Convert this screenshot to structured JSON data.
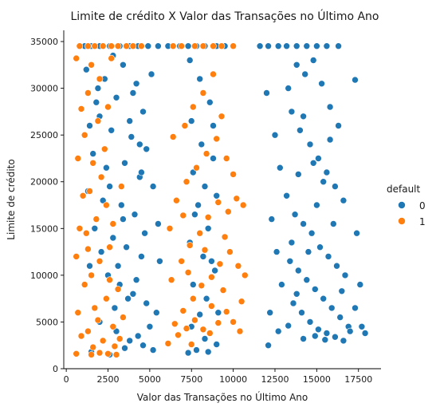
{
  "chart_data": {
    "type": "scatter",
    "title": "Limite de crédito X Valor das Transações no Último Ano",
    "xlabel": "Valor das Transações no Último Ano",
    "ylabel": "Limite de crédito",
    "xlim": [
      -150,
      18850
    ],
    "ylim": [
      0,
      36200
    ],
    "xticks": [
      0,
      2500,
      5000,
      7500,
      10000,
      12500,
      15000,
      17500
    ],
    "xtick_labels": [
      "0",
      "2500",
      "5000",
      "7500",
      "10000",
      "12500",
      "15000",
      "17500"
    ],
    "yticks": [
      0,
      5000,
      10000,
      15000,
      20000,
      25000,
      30000,
      35000
    ],
    "ytick_labels": [
      "0",
      "5000",
      "10000",
      "15000",
      "20000",
      "25000",
      "30000",
      "35000"
    ],
    "grid": false,
    "legend": {
      "title": "default",
      "placement": "right",
      "entries": [
        {
          "label": "0",
          "color": "#1f77b4"
        },
        {
          "label": "1",
          "color": "#ff7f0e"
        }
      ]
    },
    "series": [
      {
        "name": "0",
        "color": "#1f77b4",
        "points": [
          [
            1100,
            34516
          ],
          [
            1500,
            34516
          ],
          [
            2000,
            34516
          ],
          [
            2600,
            34516
          ],
          [
            3200,
            34516
          ],
          [
            3800,
            34516
          ],
          [
            4300,
            34516
          ],
          [
            4900,
            34516
          ],
          [
            5500,
            34516
          ],
          [
            6100,
            34516
          ],
          [
            6800,
            34516
          ],
          [
            7300,
            34516
          ],
          [
            7800,
            34516
          ],
          [
            8300,
            34516
          ],
          [
            9000,
            34516
          ],
          [
            9500,
            34516
          ],
          [
            11600,
            34516
          ],
          [
            12100,
            34516
          ],
          [
            12700,
            34516
          ],
          [
            13200,
            34516
          ],
          [
            13800,
            34516
          ],
          [
            14400,
            34516
          ],
          [
            15000,
            34516
          ],
          [
            15600,
            34516
          ],
          [
            16300,
            34516
          ],
          [
            1200,
            32000
          ],
          [
            2300,
            31000
          ],
          [
            3400,
            32500
          ],
          [
            4200,
            30500
          ],
          [
            1800,
            28500
          ],
          [
            3000,
            29000
          ],
          [
            4600,
            27500
          ],
          [
            1400,
            26000
          ],
          [
            2700,
            25500
          ],
          [
            3900,
            24800
          ],
          [
            4800,
            23500
          ],
          [
            1600,
            23000
          ],
          [
            2400,
            21500
          ],
          [
            3500,
            22000
          ],
          [
            4400,
            20500
          ],
          [
            5200,
            19500
          ],
          [
            1300,
            19000
          ],
          [
            2200,
            18000
          ],
          [
            3300,
            17500
          ],
          [
            4100,
            16500
          ],
          [
            5500,
            15500
          ],
          [
            1700,
            15000
          ],
          [
            2800,
            14000
          ],
          [
            3600,
            13000
          ],
          [
            4500,
            12000
          ],
          [
            5600,
            11500
          ],
          [
            1400,
            11000
          ],
          [
            2500,
            10000
          ],
          [
            3200,
            9000
          ],
          [
            4000,
            8000
          ],
          [
            4800,
            7000
          ],
          [
            5400,
            6000
          ],
          [
            2000,
            5000
          ],
          [
            3000,
            4000
          ],
          [
            3800,
            3000
          ],
          [
            4600,
            2500
          ],
          [
            5200,
            2000
          ],
          [
            1500,
            1800
          ],
          [
            2600,
            1500
          ],
          [
            3500,
            2200
          ],
          [
            4300,
            3500
          ],
          [
            5000,
            4500
          ],
          [
            2900,
            6500
          ],
          [
            3700,
            7500
          ],
          [
            4200,
            9500
          ],
          [
            3100,
            11000
          ],
          [
            2100,
            12500
          ],
          [
            4700,
            14500
          ],
          [
            3400,
            16000
          ],
          [
            2600,
            19500
          ],
          [
            4500,
            21000
          ],
          [
            3800,
            26500
          ],
          [
            2000,
            27000
          ],
          [
            4000,
            29500
          ],
          [
            5100,
            31500
          ],
          [
            2800,
            33500
          ],
          [
            1900,
            30000
          ],
          [
            4400,
            24000
          ],
          [
            7400,
            33000
          ],
          [
            8000,
            31000
          ],
          [
            8600,
            28500
          ],
          [
            7500,
            26500
          ],
          [
            8100,
            24000
          ],
          [
            8800,
            22500
          ],
          [
            7600,
            21000
          ],
          [
            8300,
            19500
          ],
          [
            9000,
            18500
          ],
          [
            7700,
            16500
          ],
          [
            8500,
            15000
          ],
          [
            7400,
            13500
          ],
          [
            8200,
            12000
          ],
          [
            8900,
            10500
          ],
          [
            7600,
            9000
          ],
          [
            8400,
            7500
          ],
          [
            9100,
            6000
          ],
          [
            7500,
            4500
          ],
          [
            8300,
            3200
          ],
          [
            9000,
            2600
          ],
          [
            7800,
            2000
          ],
          [
            8500,
            1800
          ],
          [
            7300,
            1700
          ],
          [
            8000,
            5800
          ],
          [
            8700,
            11500
          ],
          [
            7900,
            17500
          ],
          [
            8800,
            26000
          ],
          [
            12000,
            29500
          ],
          [
            12500,
            25000
          ],
          [
            12800,
            21500
          ],
          [
            12300,
            16000
          ],
          [
            12600,
            12500
          ],
          [
            12900,
            9000
          ],
          [
            12200,
            6000
          ],
          [
            12700,
            4000
          ],
          [
            12100,
            2500
          ],
          [
            13300,
            30000
          ],
          [
            13800,
            32500
          ],
          [
            14300,
            31500
          ],
          [
            14800,
            33000
          ],
          [
            15300,
            30500
          ],
          [
            15800,
            28000
          ],
          [
            16300,
            26000
          ],
          [
            13500,
            27500
          ],
          [
            14000,
            25500
          ],
          [
            14600,
            24000
          ],
          [
            15100,
            22500
          ],
          [
            15600,
            21000
          ],
          [
            16100,
            19500
          ],
          [
            16600,
            18000
          ],
          [
            13200,
            18500
          ],
          [
            13700,
            16500
          ],
          [
            14200,
            15500
          ],
          [
            14700,
            14500
          ],
          [
            15200,
            13000
          ],
          [
            15700,
            12000
          ],
          [
            16200,
            11000
          ],
          [
            16700,
            10000
          ],
          [
            13400,
            11500
          ],
          [
            13900,
            10500
          ],
          [
            14400,
            9500
          ],
          [
            14900,
            8500
          ],
          [
            15400,
            7500
          ],
          [
            15900,
            6500
          ],
          [
            16400,
            5500
          ],
          [
            16900,
            4500
          ],
          [
            13600,
            7000
          ],
          [
            14100,
            6000
          ],
          [
            14600,
            5000
          ],
          [
            15100,
            4200
          ],
          [
            15600,
            3800
          ],
          [
            16100,
            3400
          ],
          [
            16600,
            3000
          ],
          [
            17000,
            4000
          ],
          [
            17300,
            6500
          ],
          [
            17600,
            9000
          ],
          [
            17400,
            14500
          ],
          [
            17300,
            30900
          ],
          [
            17700,
            4500
          ],
          [
            17900,
            3800
          ],
          [
            14200,
            3200
          ],
          [
            14900,
            3500
          ],
          [
            15500,
            3100
          ],
          [
            13300,
            4600
          ],
          [
            13800,
            8000
          ],
          [
            14500,
            12500
          ],
          [
            15000,
            17500
          ],
          [
            15400,
            20000
          ],
          [
            14800,
            22000
          ],
          [
            16000,
            15500
          ],
          [
            13500,
            13500
          ],
          [
            16500,
            8300
          ],
          [
            14200,
            27000
          ],
          [
            15800,
            24500
          ],
          [
            13900,
            20800
          ]
        ]
      },
      {
        "name": "1",
        "color": "#ff7f0e",
        "points": [
          [
            800,
            34516
          ],
          [
            1300,
            34516
          ],
          [
            1700,
            34516
          ],
          [
            2200,
            34516
          ],
          [
            2700,
            34516
          ],
          [
            3100,
            34516
          ],
          [
            3600,
            34516
          ],
          [
            4000,
            34516
          ],
          [
            4500,
            34516
          ],
          [
            6400,
            34516
          ],
          [
            6900,
            34516
          ],
          [
            7700,
            34516
          ],
          [
            8200,
            34516
          ],
          [
            8800,
            34516
          ],
          [
            9300,
            34516
          ],
          [
            10000,
            34516
          ],
          [
            600,
            33200
          ],
          [
            900,
            27800
          ],
          [
            700,
            22500
          ],
          [
            1000,
            18500
          ],
          [
            800,
            15000
          ],
          [
            600,
            12000
          ],
          [
            1100,
            9000
          ],
          [
            700,
            6000
          ],
          [
            900,
            3500
          ],
          [
            600,
            1600
          ],
          [
            1500,
            1500
          ],
          [
            2000,
            1700
          ],
          [
            2500,
            1600
          ],
          [
            3000,
            1500
          ],
          [
            1300,
            4000
          ],
          [
            2200,
            3000
          ],
          [
            2800,
            4500
          ],
          [
            1700,
            6500
          ],
          [
            2400,
            7500
          ],
          [
            3100,
            8500
          ],
          [
            1500,
            10000
          ],
          [
            2000,
            11500
          ],
          [
            2600,
            13000
          ],
          [
            1200,
            14500
          ],
          [
            1800,
            16000
          ],
          [
            2400,
            17500
          ],
          [
            1400,
            19000
          ],
          [
            2100,
            20500
          ],
          [
            1600,
            22000
          ],
          [
            2300,
            23500
          ],
          [
            1100,
            25000
          ],
          [
            1900,
            26500
          ],
          [
            2500,
            28000
          ],
          [
            1300,
            29500
          ],
          [
            2000,
            31000
          ],
          [
            1500,
            32500
          ],
          [
            2700,
            33200
          ],
          [
            3400,
            5500
          ],
          [
            3200,
            3200
          ],
          [
            1600,
            2300
          ],
          [
            2900,
            2400
          ],
          [
            1900,
            5200
          ],
          [
            2600,
            9500
          ],
          [
            1300,
            12800
          ],
          [
            2800,
            15500
          ],
          [
            3300,
            19500
          ],
          [
            6100,
            2700
          ],
          [
            6700,
            3600
          ],
          [
            7200,
            4300
          ],
          [
            7700,
            5200
          ],
          [
            8200,
            4200
          ],
          [
            8600,
            3800
          ],
          [
            9100,
            4900
          ],
          [
            9600,
            6100
          ],
          [
            10000,
            5000
          ],
          [
            10400,
            4000
          ],
          [
            6500,
            4800
          ],
          [
            7000,
            6200
          ],
          [
            7600,
            7500
          ],
          [
            8100,
            8900
          ],
          [
            8700,
            9800
          ],
          [
            9200,
            11200
          ],
          [
            9800,
            12500
          ],
          [
            10300,
            11000
          ],
          [
            10700,
            10000
          ],
          [
            6300,
            9500
          ],
          [
            6900,
            11500
          ],
          [
            7400,
            13200
          ],
          [
            8000,
            14500
          ],
          [
            8500,
            16200
          ],
          [
            9100,
            17800
          ],
          [
            9700,
            16800
          ],
          [
            10200,
            18200
          ],
          [
            10600,
            17500
          ],
          [
            6600,
            18000
          ],
          [
            7200,
            20000
          ],
          [
            7800,
            21500
          ],
          [
            8400,
            23000
          ],
          [
            9000,
            24600
          ],
          [
            9600,
            22500
          ],
          [
            6400,
            24800
          ],
          [
            7100,
            26000
          ],
          [
            7600,
            28000
          ],
          [
            8200,
            29500
          ],
          [
            8800,
            31500
          ],
          [
            9300,
            27000
          ],
          [
            10000,
            20800
          ],
          [
            7000,
            16400
          ],
          [
            8300,
            12700
          ],
          [
            9400,
            8400
          ],
          [
            7500,
            2600
          ],
          [
            10500,
            7200
          ],
          [
            6200,
            15000
          ],
          [
            8700,
            6700
          ],
          [
            9500,
            14100
          ],
          [
            7300,
            10300
          ]
        ]
      }
    ]
  }
}
